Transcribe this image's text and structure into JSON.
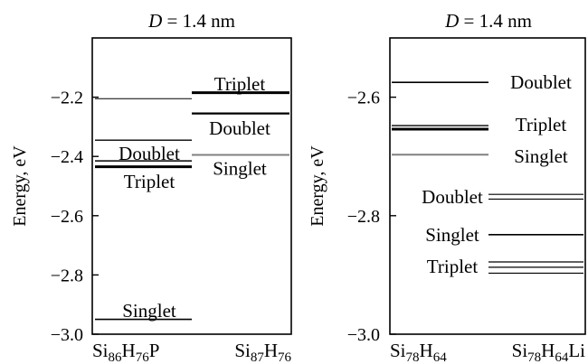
{
  "chart_data": [
    {
      "type": "scatter",
      "title": "D = 1.4 nm",
      "ylabel": "Energy, eV",
      "ylim": [
        -3.0,
        -2.0
      ],
      "yticks": [
        -2.2,
        -2.4,
        -2.6,
        -2.8,
        -3.0
      ],
      "ytick_labels": [
        "−2.2",
        "−2.4",
        "−2.6",
        "−2.8",
        "−3.0"
      ],
      "columns": [
        {
          "base": "Si",
          "n1": "86",
          "el2": "H",
          "n2": "76",
          "suffix": "P"
        },
        {
          "base": "Si",
          "n1": "87",
          "el2": "H",
          "n2": "76",
          "suffix": ""
        }
      ],
      "levels": [
        {
          "column": 0,
          "energy": -2.205,
          "color": "#000000",
          "width": 1
        },
        {
          "column": 0,
          "energy": -2.345,
          "color": "#000000",
          "width": 1.4
        },
        {
          "column": 0,
          "energy": -2.415,
          "color": "#000000",
          "width": 1.6
        },
        {
          "column": 0,
          "energy": -2.435,
          "color": "#000000",
          "width": 3
        },
        {
          "column": 0,
          "energy": -2.95,
          "color": "#000000",
          "width": 1.6
        },
        {
          "column": 1,
          "energy": -2.185,
          "color": "#000000",
          "width": 3
        },
        {
          "column": 1,
          "energy": -2.255,
          "color": "#000000",
          "width": 2.2
        },
        {
          "column": 1,
          "energy": -2.395,
          "color": "#808080",
          "width": 2
        }
      ],
      "annotations": [
        {
          "text": "Triplet",
          "column": 1,
          "energy": -2.155
        },
        {
          "text": "Doublet",
          "column": 1,
          "energy": -2.305
        },
        {
          "text": "Singlet",
          "column": 1,
          "energy": -2.44
        },
        {
          "text": "Doublet",
          "column": 0,
          "energy": -2.39
        },
        {
          "text": "Triplet",
          "column": 0,
          "energy": -2.485
        },
        {
          "text": "Singlet",
          "column": 0,
          "energy": -2.92
        }
      ]
    },
    {
      "type": "scatter",
      "title": "D = 1.4 nm",
      "ylabel": "Energy, eV",
      "ylim": [
        -3.0,
        -2.5
      ],
      "yticks": [
        -2.6,
        -2.8,
        -3.0
      ],
      "ytick_labels": [
        "−2.6",
        "−2.8",
        "−3.0"
      ],
      "columns": [
        {
          "base": "Si",
          "n1": "78",
          "el2": "H",
          "n2": "64",
          "suffix": ""
        },
        {
          "base": "Si",
          "n1": "78",
          "el2": "H",
          "n2": "64",
          "suffix": "Li"
        }
      ],
      "levels": [
        {
          "column": 0,
          "energy": -2.575,
          "color": "#000000",
          "width": 1.6
        },
        {
          "column": 0,
          "energy": -2.648,
          "color": "#000000",
          "width": 1.4
        },
        {
          "column": 0,
          "energy": -2.654,
          "color": "#000000",
          "width": 3
        },
        {
          "column": 0,
          "energy": -2.697,
          "color": "#808080",
          "width": 2
        },
        {
          "column": 1,
          "energy": -2.764,
          "color": "#000000",
          "width": 1.2
        },
        {
          "column": 1,
          "energy": -2.772,
          "color": "#000000",
          "width": 1.2
        },
        {
          "column": 1,
          "energy": -2.832,
          "color": "#000000",
          "width": 1.6
        },
        {
          "column": 1,
          "energy": -2.878,
          "color": "#000000",
          "width": 1.2
        },
        {
          "column": 1,
          "energy": -2.887,
          "color": "#000000",
          "width": 1.2
        },
        {
          "column": 1,
          "energy": -2.897,
          "color": "#000000",
          "width": 1.2
        }
      ],
      "annotations": [
        {
          "text": "Doublet",
          "column": 1,
          "energy": -2.575
        },
        {
          "text": "Triplet",
          "column": 1,
          "energy": -2.646
        },
        {
          "text": "Singlet",
          "column": 1,
          "energy": -2.7
        },
        {
          "text": "Doublet",
          "column": 0,
          "energy": -2.768
        },
        {
          "text": "Singlet",
          "column": 0,
          "energy": -2.832
        },
        {
          "text": "Triplet",
          "column": 0,
          "energy": -2.886
        }
      ]
    }
  ]
}
